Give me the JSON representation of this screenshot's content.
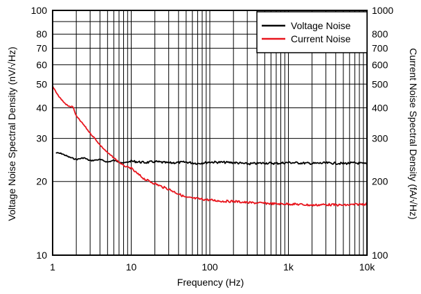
{
  "chart_data": {
    "type": "line",
    "title": "",
    "xlabel": "Frequency (Hz)",
    "ylabel": "Voltage Noise Spectral Density (nV/√Hz)",
    "y2label": "Current Noise Spectral Density (fA/√Hz)",
    "x_scale": "log",
    "y_scale": "log",
    "y2_scale": "log",
    "xlim": [
      1,
      10000
    ],
    "ylim": [
      10,
      100
    ],
    "y2lim": [
      100,
      1000
    ],
    "grid": true,
    "legend_position": "top-right",
    "x_ticks": [
      {
        "value": 1,
        "label": "1"
      },
      {
        "value": 10,
        "label": "10"
      },
      {
        "value": 100,
        "label": "100"
      },
      {
        "value": 1000,
        "label": "1k"
      },
      {
        "value": 10000,
        "label": "10k"
      }
    ],
    "y_ticks": [
      {
        "value": 10,
        "label": "10"
      },
      {
        "value": 20,
        "label": "20"
      },
      {
        "value": 30,
        "label": "30"
      },
      {
        "value": 40,
        "label": "40"
      },
      {
        "value": 50,
        "label": "50"
      },
      {
        "value": 60,
        "label": "60"
      },
      {
        "value": 70,
        "label": "70"
      },
      {
        "value": 80,
        "label": "80"
      },
      {
        "value": 100,
        "label": "100"
      }
    ],
    "y2_ticks": [
      {
        "value": 100,
        "label": "100"
      },
      {
        "value": 200,
        "label": "200"
      },
      {
        "value": 300,
        "label": "300"
      },
      {
        "value": 400,
        "label": "400"
      },
      {
        "value": 500,
        "label": "500"
      },
      {
        "value": 600,
        "label": "600"
      },
      {
        "value": 700,
        "label": "700"
      },
      {
        "value": 800,
        "label": "800"
      },
      {
        "value": 1000,
        "label": "1000"
      }
    ],
    "series": [
      {
        "name": "Voltage Noise",
        "color": "#000000",
        "axis": "left",
        "x": [
          1.1,
          1.3,
          1.6,
          2,
          2.5,
          3,
          4,
          5,
          6,
          8,
          10,
          15,
          20,
          30,
          50,
          70,
          100,
          200,
          300,
          500,
          700,
          1000,
          2000,
          3000,
          5000,
          7000,
          10000
        ],
        "y": [
          26.2,
          26.0,
          25.2,
          24.6,
          25.0,
          24.3,
          24.6,
          24.0,
          24.4,
          23.8,
          24.2,
          23.9,
          24.1,
          23.8,
          24.0,
          23.7,
          24.0,
          23.9,
          23.6,
          23.8,
          23.7,
          23.9,
          23.7,
          23.8,
          23.7,
          23.8,
          23.6
        ]
      },
      {
        "name": "Current Noise",
        "color": "#e8141c",
        "axis": "right",
        "x": [
          1,
          1.2,
          1.4,
          1.6,
          1.8,
          2,
          2.5,
          3,
          3.5,
          4,
          5,
          6,
          7,
          8,
          10,
          12,
          15,
          20,
          25,
          30,
          40,
          50,
          70,
          100,
          150,
          200,
          300,
          500,
          700,
          1000,
          1500,
          2000,
          3000,
          5000,
          7000,
          10000
        ],
        "y": [
          490,
          445,
          420,
          405,
          405,
          370,
          340,
          315,
          298,
          282,
          262,
          250,
          240,
          232,
          226,
          215,
          204,
          196,
          190,
          186,
          178,
          172,
          170,
          168,
          166,
          166,
          164,
          163,
          162,
          162,
          161,
          160,
          161,
          160,
          161,
          162
        ]
      }
    ]
  }
}
